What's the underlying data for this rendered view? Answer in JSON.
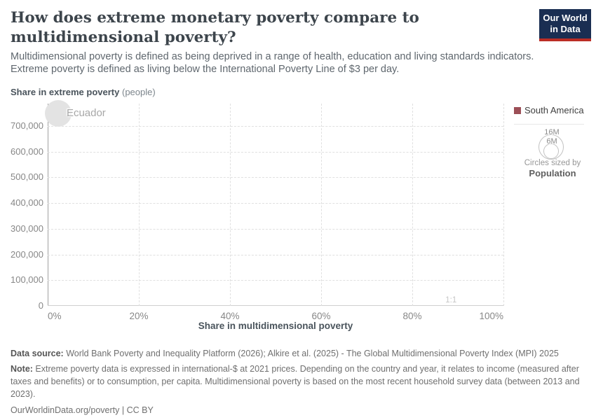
{
  "header": {
    "title": "How does extreme monetary poverty compare to multidimensional poverty?",
    "subtitle_line1": "Multidimensional poverty is defined as being deprived in a range of health, education and living standards indicators.",
    "subtitle_line2": "Extreme poverty is defined as living below the International Poverty Line of $3 per day."
  },
  "logo": {
    "line1": "Our World",
    "line2": "in Data",
    "bg_color": "#1a2e52",
    "bar_color": "#bb2d25"
  },
  "chart_data": {
    "type": "scatter",
    "xlabel": "Share in multidimensional poverty",
    "ylabel_bold": "Share in extreme poverty",
    "ylabel_unit": "(people)",
    "xlim": [
      0,
      100
    ],
    "ylim": [
      0,
      787000
    ],
    "grid": true,
    "x_ticks": [
      {
        "value": 0,
        "label": "0%"
      },
      {
        "value": 20,
        "label": "20%"
      },
      {
        "value": 40,
        "label": "40%"
      },
      {
        "value": 60,
        "label": "60%"
      },
      {
        "value": 80,
        "label": "80%"
      },
      {
        "value": 100,
        "label": "100%"
      }
    ],
    "y_ticks": [
      {
        "value": 0,
        "label": "0"
      },
      {
        "value": 100000,
        "label": "100,000"
      },
      {
        "value": 200000,
        "label": "200,000"
      },
      {
        "value": 300000,
        "label": "300,000"
      },
      {
        "value": 400000,
        "label": "400,000"
      },
      {
        "value": 500000,
        "label": "500,000"
      },
      {
        "value": 600000,
        "label": "600,000"
      },
      {
        "value": 700000,
        "label": "700,000"
      }
    ],
    "points": [
      {
        "name": "Ecuador",
        "x": 2.3,
        "y": 750000,
        "radius_px": 19,
        "fill": "#e3e3e3"
      }
    ],
    "reference_line": {
      "label": "1:1",
      "x": 88.5
    },
    "legend": {
      "position": "right",
      "series": [
        {
          "name": "South America",
          "color": "#9c4f57"
        }
      ]
    },
    "size_legend": {
      "outer": "16M",
      "inner": "6M",
      "caption": "Circles sized by",
      "caption_bold": "Population"
    }
  },
  "footer": {
    "source_label": "Data source:",
    "source_text": " World Bank Poverty and Inequality Platform (2026); Alkire et al. (2025) - The Global Multidimensional Poverty Index (MPI) 2025",
    "note_label": "Note:",
    "note_text": " Extreme poverty data is expressed in international-$ at 2021 prices. Depending on the country and year, it relates to income (measured after taxes and benefits) or to consumption, per capita. Multidimensional poverty is based on the most recent household survey data (between 2013 and 2023).",
    "cc": "OurWorldinData.org/poverty | CC BY"
  }
}
